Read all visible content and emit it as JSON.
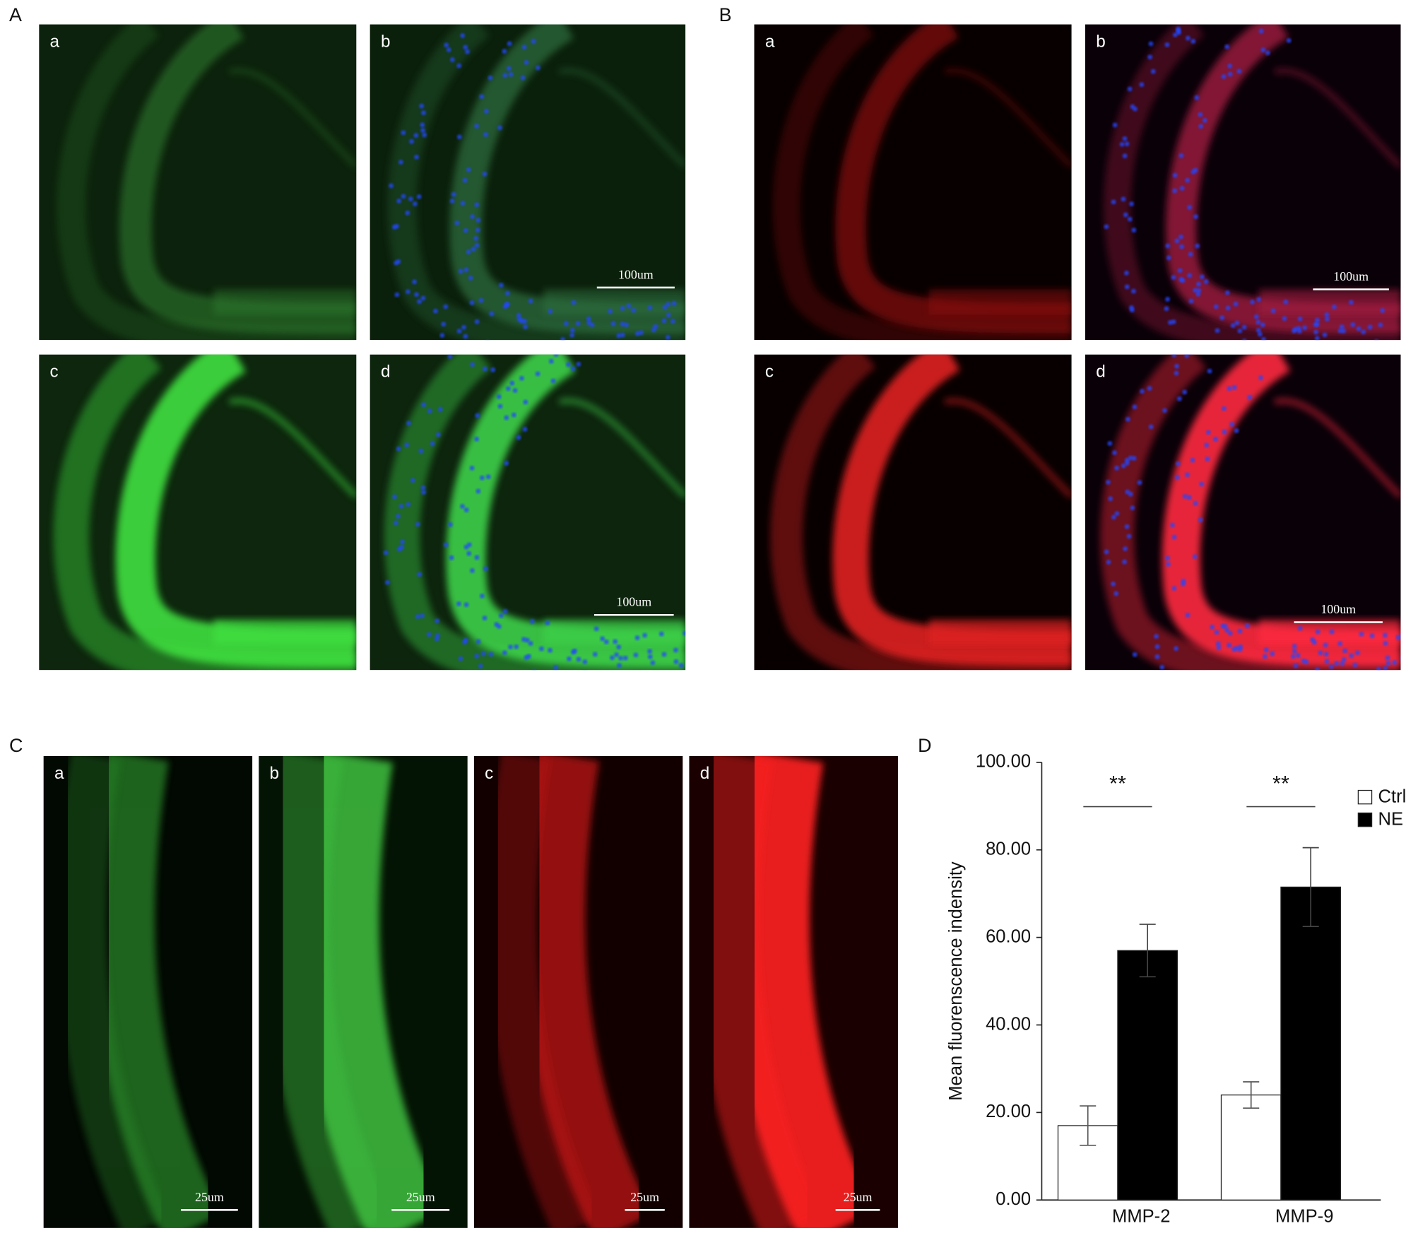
{
  "panels": [
    {
      "label": "A",
      "images": [
        {
          "label": "a"
        },
        {
          "label": "b",
          "scale_bar": "100um"
        },
        {
          "label": "c"
        },
        {
          "label": "d",
          "scale_bar": "100um"
        }
      ]
    },
    {
      "label": "B",
      "images": [
        {
          "label": "a"
        },
        {
          "label": "b",
          "scale_bar": "100um"
        },
        {
          "label": "c"
        },
        {
          "label": "d",
          "scale_bar": "100um"
        }
      ]
    },
    {
      "label": "C",
      "images": [
        {
          "label": "a",
          "scale_bar": "25um"
        },
        {
          "label": "b",
          "scale_bar": "25um"
        },
        {
          "label": "c",
          "scale_bar": "25um"
        },
        {
          "label": "d",
          "scale_bar": "25um"
        }
      ]
    },
    {
      "label": "D"
    }
  ],
  "chart_data": {
    "type": "bar",
    "y_label": "Mean fluorenscence indensity",
    "categories": [
      "MMP-2",
      "MMP-9"
    ],
    "series": [
      {
        "name": "Ctrl",
        "color": "#ffffff",
        "values": [
          17,
          24
        ],
        "errors": [
          4.5,
          3
        ]
      },
      {
        "name": "NE",
        "color": "#000000",
        "values": [
          57,
          71.5
        ],
        "errors": [
          6,
          9
        ]
      }
    ],
    "annotations": [
      "**",
      "**"
    ],
    "ylim": [
      0,
      100
    ],
    "yticks": [
      {
        "value": 0,
        "label": "0.00"
      },
      {
        "value": 20,
        "label": "20.00"
      },
      {
        "value": 40,
        "label": "40.00"
      },
      {
        "value": 60,
        "label": "60.00"
      },
      {
        "value": 80,
        "label": "80.00"
      },
      {
        "value": 100,
        "label": "100.00"
      }
    ],
    "legend": "upper right"
  }
}
